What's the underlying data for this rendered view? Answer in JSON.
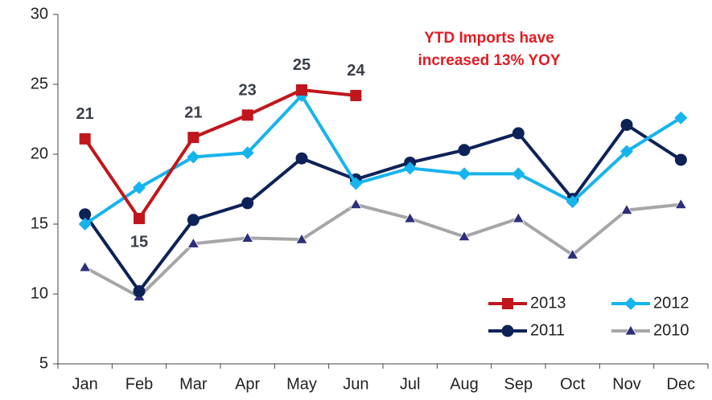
{
  "chart_data": {
    "type": "line",
    "annotation": [
      "YTD Imports have",
      "increased 13% YOY"
    ],
    "annotation_color": "#e31b23",
    "categories": [
      "Jan",
      "Feb",
      "Mar",
      "Apr",
      "May",
      "Jun",
      "Jul",
      "Aug",
      "Sep",
      "Oct",
      "Nov",
      "Dec"
    ],
    "series": [
      {
        "name": "2013",
        "color": "#c0161c",
        "marker": "square",
        "values": [
          21.1,
          15.4,
          21.2,
          22.8,
          24.6,
          24.2,
          null,
          null,
          null,
          null,
          null,
          null
        ],
        "value_labels": [
          "21",
          "15",
          "21",
          "23",
          "25",
          "24",
          null,
          null,
          null,
          null,
          null,
          null
        ]
      },
      {
        "name": "2012",
        "color": "#16b4ee",
        "marker": "diamond",
        "values": [
          15.0,
          17.6,
          19.8,
          20.1,
          24.2,
          17.9,
          19.0,
          18.6,
          18.6,
          16.6,
          20.2,
          22.6
        ]
      },
      {
        "name": "2011",
        "color": "#0d2257",
        "marker": "circle",
        "values": [
          15.7,
          10.2,
          15.3,
          16.5,
          19.7,
          18.2,
          19.4,
          20.3,
          21.5,
          16.8,
          22.1,
          19.6
        ]
      },
      {
        "name": "2010",
        "color": "#a6a6a6",
        "marker": "triangle",
        "values": [
          11.9,
          9.8,
          13.6,
          14.0,
          13.9,
          16.4,
          15.4,
          14.1,
          15.4,
          12.8,
          16.0,
          16.4
        ]
      }
    ],
    "ylim": [
      5,
      30
    ],
    "yticks": [
      5,
      10,
      15,
      20,
      25,
      30
    ],
    "grid": false,
    "legend": "bottom-right"
  }
}
